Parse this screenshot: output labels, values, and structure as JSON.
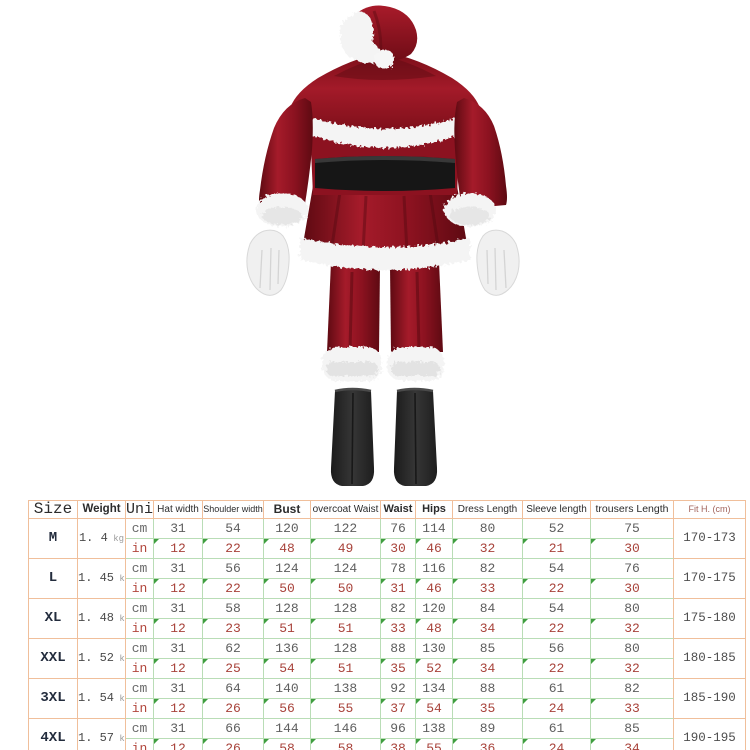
{
  "image": {
    "description": "Santa Claus costume set, back view: fur-trimmed hat with pompom, shoulder cape, belted velvet jacket, white gloves, fur-cuffed trousers and black boot covers",
    "colors": {
      "suit_red": "#9c1624",
      "suit_red_dark": "#5e0a12",
      "fur_white": "#f4f4f4",
      "belt_black": "#161616",
      "boot_black": "#262626",
      "glove_white": "#f0f0f0"
    }
  },
  "size_chart": {
    "headers": [
      "Size",
      "Weight",
      "Unit",
      "Hat width",
      "Shoulder width",
      "Bust",
      "overcoat Waist",
      "Waist",
      "Hips",
      "Dress Length",
      "Sleeve length",
      "trousers Length",
      "Fit H. (cm)"
    ],
    "unit_labels": [
      "cm",
      "in"
    ],
    "weight_unit": "kg",
    "grid_colors": {
      "orange_border": "#f0bf9b",
      "green_border": "#b9ddb6",
      "marker_green": "#3f9e3f"
    },
    "text_colors": {
      "cm_values": "#5e5e5e",
      "in_values": "#a8423a",
      "fit_header": "#a2645c"
    },
    "rows": [
      {
        "size": "M",
        "weight": "1. 4",
        "cm": [
          31,
          54,
          120,
          122,
          76,
          114,
          80,
          52,
          75
        ],
        "in": [
          12,
          22,
          48,
          49,
          30,
          46,
          32,
          21,
          30
        ],
        "fit": "170-173"
      },
      {
        "size": "L",
        "weight": "1. 45",
        "cm": [
          31,
          56,
          124,
          124,
          78,
          116,
          82,
          54,
          76
        ],
        "in": [
          12,
          22,
          50,
          50,
          31,
          46,
          33,
          22,
          30
        ],
        "fit": "170-175"
      },
      {
        "size": "XL",
        "weight": "1. 48",
        "cm": [
          31,
          58,
          128,
          128,
          82,
          120,
          84,
          54,
          80
        ],
        "in": [
          12,
          23,
          51,
          51,
          33,
          48,
          34,
          22,
          32
        ],
        "fit": "175-180"
      },
      {
        "size": "XXL",
        "weight": "1. 52",
        "cm": [
          31,
          62,
          136,
          128,
          88,
          130,
          85,
          56,
          80
        ],
        "in": [
          12,
          25,
          54,
          51,
          35,
          52,
          34,
          22,
          32
        ],
        "fit": "180-185"
      },
      {
        "size": "3XL",
        "weight": "1. 54",
        "cm": [
          31,
          64,
          140,
          138,
          92,
          134,
          88,
          61,
          82
        ],
        "in": [
          12,
          26,
          56,
          55,
          37,
          54,
          35,
          24,
          33
        ],
        "fit": "185-190"
      },
      {
        "size": "4XL",
        "weight": "1. 57",
        "cm": [
          31,
          66,
          144,
          146,
          96,
          138,
          89,
          61,
          85
        ],
        "in": [
          12,
          26,
          58,
          58,
          38,
          55,
          36,
          24,
          34
        ],
        "fit": "190-195"
      }
    ]
  }
}
